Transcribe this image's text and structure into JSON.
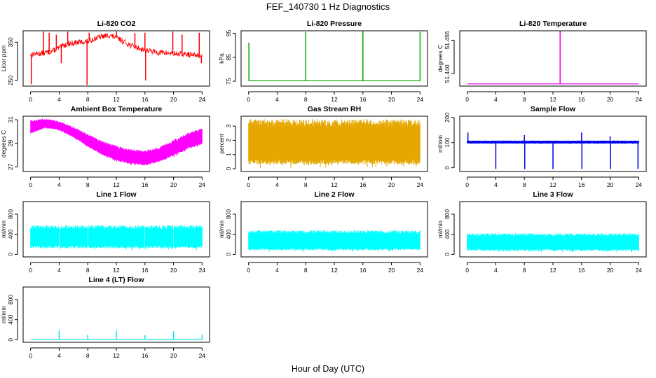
{
  "figure": {
    "title": "FEF_140730  1 Hz Diagnostics",
    "xlabel": "Hour of Day (UTC)"
  },
  "chart_data": [
    {
      "type": "line",
      "title": "Li-820 CO2",
      "ylabel": "Licor ppm",
      "color": "#ff0000",
      "render": "line",
      "x_range": [
        0,
        24
      ],
      "x_ticks": [
        "0",
        "4",
        "8",
        "12",
        "16",
        "20",
        "24"
      ],
      "ylim": [
        235,
        380
      ],
      "y_ticks": [
        250,
        350
      ],
      "y_tick_labels": [
        "250",
        "350"
      ],
      "series": [
        {
          "x": [
            0,
            1,
            2,
            3,
            4,
            5,
            6,
            7,
            8,
            9,
            10,
            11,
            12,
            13,
            14,
            15,
            16,
            17,
            18,
            19,
            20,
            21,
            22,
            23,
            24
          ],
          "y": [
            318,
            320,
            322,
            327,
            335,
            345,
            348,
            350,
            352,
            360,
            365,
            368,
            362,
            352,
            342,
            335,
            330,
            326,
            323,
            322,
            320,
            319,
            318,
            316,
            315
          ]
        }
      ],
      "spikes": [
        {
          "x": 0.1,
          "y": 240
        },
        {
          "x": 1.8,
          "y": 378
        },
        {
          "x": 2.6,
          "y": 375
        },
        {
          "x": 3.6,
          "y": 370
        },
        {
          "x": 4.3,
          "y": 295
        },
        {
          "x": 5.2,
          "y": 378
        },
        {
          "x": 7.9,
          "y": 238
        },
        {
          "x": 8.2,
          "y": 375
        },
        {
          "x": 12.0,
          "y": 378
        },
        {
          "x": 14.6,
          "y": 374
        },
        {
          "x": 16.0,
          "y": 375
        },
        {
          "x": 16.1,
          "y": 250
        },
        {
          "x": 19.9,
          "y": 378
        },
        {
          "x": 21.2,
          "y": 370
        },
        {
          "x": 23.6,
          "y": 375
        },
        {
          "x": 23.9,
          "y": 295
        }
      ]
    },
    {
      "type": "line",
      "title": "Li-820 Pressure",
      "ylabel": "kPa",
      "color": "#00aa00",
      "render": "line",
      "x_range": [
        0,
        24
      ],
      "x_ticks": [
        "0",
        "4",
        "8",
        "12",
        "16",
        "20",
        "24"
      ],
      "ylim": [
        73,
        96
      ],
      "y_ticks": [
        75,
        85,
        95
      ],
      "y_tick_labels": [
        "75",
        "85",
        "95"
      ],
      "series": [
        {
          "x": [
            0,
            24
          ],
          "y": [
            75.2,
            75.2
          ]
        }
      ],
      "spikes": [
        {
          "x": 0.05,
          "y": 91
        },
        {
          "x": 8.0,
          "y": 95.5
        },
        {
          "x": 16.0,
          "y": 95.8
        },
        {
          "x": 24.0,
          "y": 95.5
        }
      ]
    },
    {
      "type": "line",
      "title": "Li-820 Temperature",
      "ylabel": "degrees C",
      "color": "#ee00ee",
      "render": "line",
      "x_range": [
        0,
        24
      ],
      "x_ticks": [
        "0",
        "4",
        "8",
        "12",
        "16",
        "20",
        "24"
      ],
      "ylim": [
        51.4345,
        51.4592
      ],
      "y_ticks": [
        51.44,
        51.455
      ],
      "y_tick_labels": [
        "51.440",
        "51.455"
      ],
      "series": [
        {
          "x": [
            0,
            24
          ],
          "y": [
            51.4355,
            51.4355
          ]
        }
      ],
      "spikes": [
        {
          "x": 13.0,
          "y": 51.4592
        }
      ]
    },
    {
      "type": "line",
      "title": "Ambient Box Temperature",
      "ylabel": "degrees C",
      "color": "#ff00ff",
      "render": "band",
      "x_range": [
        0,
        24
      ],
      "x_ticks": [
        "0",
        "4",
        "8",
        "12",
        "16",
        "20",
        "24"
      ],
      "ylim": [
        26.6,
        31.3
      ],
      "y_ticks": [
        27,
        29,
        31
      ],
      "y_tick_labels": [
        "27",
        "29",
        "31"
      ],
      "series": [
        {
          "x": [
            0,
            2,
            4,
            6,
            8,
            10,
            12,
            14,
            16,
            18,
            20,
            22,
            24
          ],
          "y_min": [
            29.8,
            30.3,
            30.1,
            29.5,
            28.7,
            28.0,
            27.5,
            27.2,
            27.1,
            27.4,
            27.9,
            28.5,
            28.9
          ],
          "y_max": [
            31.0,
            31.1,
            30.9,
            30.4,
            29.8,
            29.2,
            28.8,
            28.5,
            28.4,
            28.7,
            29.3,
            29.9,
            30.3
          ]
        }
      ]
    },
    {
      "type": "line",
      "title": "Gas Stream RH",
      "ylabel": "percent",
      "color": "#e6a800",
      "render": "band",
      "x_range": [
        0,
        24
      ],
      "x_ticks": [
        "0",
        "4",
        "8",
        "12",
        "16",
        "20",
        "24"
      ],
      "ylim": [
        -0.2,
        3.7
      ],
      "y_ticks": [
        0,
        1,
        2,
        3
      ],
      "y_tick_labels": [
        "0",
        "1",
        "2",
        "3"
      ],
      "series": [
        {
          "x": [
            0,
            24
          ],
          "y_min": [
            0.3,
            0.3
          ],
          "y_max": [
            3.5,
            3.5
          ]
        }
      ]
    },
    {
      "type": "line",
      "title": "Sample Flow",
      "ylabel": "ml/min",
      "color": "#0000ee",
      "render": "band",
      "x_range": [
        0,
        24
      ],
      "x_ticks": [
        "0",
        "4",
        "8",
        "12",
        "16",
        "20",
        "24"
      ],
      "ylim": [
        -15,
        205
      ],
      "y_ticks": [
        0,
        100,
        200
      ],
      "y_tick_labels": [
        "0",
        "100",
        "200"
      ],
      "series": [
        {
          "x": [
            0,
            24
          ],
          "y_min": [
            96,
            96
          ],
          "y_max": [
            108,
            108
          ]
        }
      ],
      "spikes": [
        {
          "x": 0.1,
          "y": 140
        },
        {
          "x": 4.0,
          "y": -5
        },
        {
          "x": 8.0,
          "y": 130
        },
        {
          "x": 8.05,
          "y": -5
        },
        {
          "x": 12.0,
          "y": -5
        },
        {
          "x": 16.0,
          "y": 140
        },
        {
          "x": 16.05,
          "y": -5
        },
        {
          "x": 20.0,
          "y": 125
        },
        {
          "x": 20.05,
          "y": -5
        },
        {
          "x": 23.9,
          "y": -5
        }
      ]
    },
    {
      "type": "line",
      "title": "Line 1 Flow",
      "ylabel": "ml/min",
      "color": "#00ffff",
      "render": "band",
      "x_range": [
        0,
        24
      ],
      "x_ticks": [
        "0",
        "4",
        "8",
        "12",
        "16",
        "20",
        "24"
      ],
      "ylim": [
        -50,
        1050
      ],
      "y_ticks": [
        0,
        400,
        800
      ],
      "y_tick_labels": [
        "0",
        "400",
        "800"
      ],
      "series": [
        {
          "x": [
            0,
            24
          ],
          "y_min": [
            120,
            120
          ],
          "y_max": [
            580,
            580
          ]
        }
      ],
      "gaps": [
        4.0,
        8.0,
        12.0,
        16.0,
        20.0
      ]
    },
    {
      "type": "line",
      "title": "Line 2 Flow",
      "ylabel": "ml/min",
      "color": "#00ffff",
      "render": "band",
      "x_range": [
        0,
        24
      ],
      "x_ticks": [
        "0",
        "4",
        "8",
        "12",
        "16",
        "20",
        "24"
      ],
      "ylim": [
        -50,
        1050
      ],
      "y_ticks": [
        0,
        400,
        800
      ],
      "y_tick_labels": [
        "0",
        "400",
        "800"
      ],
      "series": [
        {
          "x": [
            0,
            24
          ],
          "y_min": [
            80,
            80
          ],
          "y_max": [
            480,
            480
          ]
        }
      ]
    },
    {
      "type": "line",
      "title": "Line 3 Flow",
      "ylabel": "ml/min",
      "color": "#00ffff",
      "render": "band",
      "x_range": [
        0,
        24
      ],
      "x_ticks": [
        "0",
        "4",
        "8",
        "12",
        "16",
        "20",
        "24"
      ],
      "ylim": [
        -50,
        1050
      ],
      "y_ticks": [
        0,
        400,
        800
      ],
      "y_tick_labels": [
        "0",
        "400",
        "800"
      ],
      "series": [
        {
          "x": [
            0,
            24
          ],
          "y_min": [
            70,
            70
          ],
          "y_max": [
            420,
            420
          ]
        }
      ]
    },
    {
      "type": "line",
      "title": "Line 4 (LT) Flow",
      "ylabel": "ml/min",
      "color": "#00e5e5",
      "render": "line",
      "x_range": [
        0,
        24
      ],
      "x_ticks": [
        "0",
        "4",
        "8",
        "12",
        "16",
        "20",
        "24"
      ],
      "ylim": [
        -50,
        1050
      ],
      "y_ticks": [
        0,
        400,
        800
      ],
      "y_tick_labels": [
        "0",
        "400",
        "800"
      ],
      "series": [
        {
          "x": [
            0,
            24
          ],
          "y": [
            10,
            10
          ]
        }
      ],
      "spikes": [
        {
          "x": 4.0,
          "y": 190
        },
        {
          "x": 8.0,
          "y": 100
        },
        {
          "x": 12.0,
          "y": 180
        },
        {
          "x": 16.0,
          "y": 90
        },
        {
          "x": 20.0,
          "y": 170
        },
        {
          "x": 24.0,
          "y": 100
        }
      ]
    }
  ]
}
